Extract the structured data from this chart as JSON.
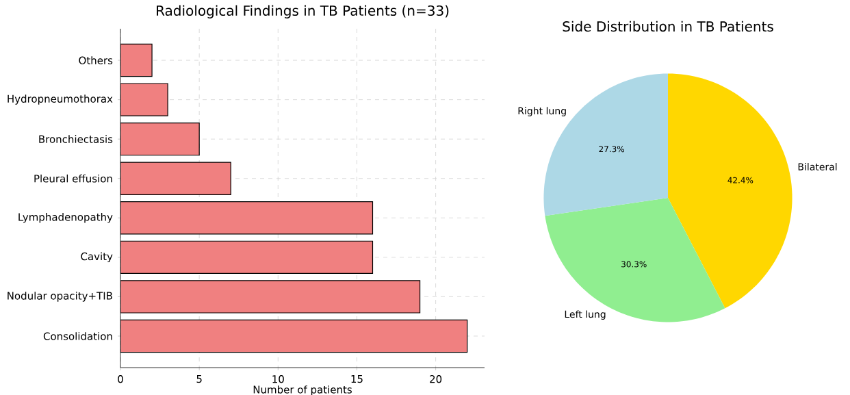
{
  "chart_data": [
    {
      "type": "bar",
      "orientation": "horizontal",
      "title": "Radiological Findings in TB Patients (n=33)",
      "xlabel": "Number of patients",
      "categories": [
        "Others",
        "Hydropneumothorax",
        "Bronchiectasis",
        "Pleural effusion",
        "Lymphadenopathy",
        "Cavity",
        "Nodular opacity+TIB",
        "Consolidation"
      ],
      "values": [
        2,
        3,
        5,
        7,
        16,
        16,
        19,
        22
      ],
      "color": "#f08080",
      "xlim": [
        0,
        23.1
      ],
      "xticks": [
        0,
        5,
        10,
        15,
        20
      ],
      "grid": true
    },
    {
      "type": "pie",
      "title": "Side Distribution in TB Patients",
      "categories": [
        "Bilateral",
        "Left lung",
        "Right lung"
      ],
      "values": [
        42.4,
        30.3,
        27.3
      ],
      "colors": [
        "#ffd700",
        "#90ee90",
        "#add8e6"
      ],
      "value_labels": [
        "42.4%",
        "30.3%",
        "27.3%"
      ]
    }
  ]
}
